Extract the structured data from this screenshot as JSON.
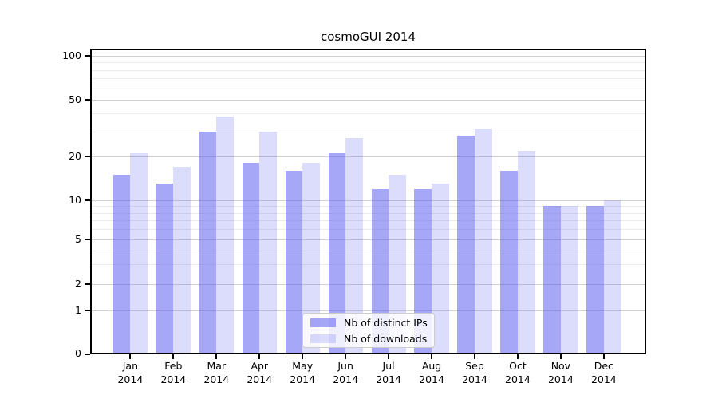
{
  "title": "cosmoGUI 2014",
  "colors": {
    "bar_base": "#5050f0",
    "ips_bar": "rgba(80,80,240,0.5)",
    "downloads_bar": "rgba(80,80,240,0.2)",
    "ips_bar_flat_hex": "#a7a7f7",
    "downloads_bar_flat_hex": "#dcdcfb",
    "grid_major": "#d2d2d2",
    "grid_minor": "#ececec",
    "axis": "#000000",
    "background": "#ffffff",
    "legend_border": "#cccccc"
  },
  "chart_data": {
    "type": "bar",
    "title": "cosmoGUI 2014",
    "categories": [
      "Jan 2014",
      "Feb 2014",
      "Mar 2014",
      "Apr 2014",
      "May 2014",
      "Jun 2014",
      "Jul 2014",
      "Aug 2014",
      "Sep 2014",
      "Oct 2014",
      "Nov 2014",
      "Dec 2014"
    ],
    "series": [
      {
        "name": "Nb of distinct IPs",
        "values": [
          15,
          13,
          30,
          18,
          16,
          21,
          12,
          12,
          28,
          16,
          9,
          9
        ]
      },
      {
        "name": "Nb of downloads",
        "values": [
          21,
          17,
          38,
          30,
          18,
          27,
          15,
          13,
          31,
          22,
          9,
          10
        ]
      }
    ],
    "xlabel": "",
    "ylabel": "",
    "y_ticks": [
      0,
      1,
      2,
      5,
      10,
      20,
      50,
      100
    ],
    "y_minor_gridlines": [
      3,
      4,
      6,
      7,
      8,
      9,
      30,
      40,
      60,
      70,
      80,
      90
    ],
    "y_scale": "log-like (logarithmic above 10, compressed 1-10, linear 0-1)",
    "ylim": [
      0,
      112
    ],
    "grid": true,
    "legend_position": "lower center"
  }
}
